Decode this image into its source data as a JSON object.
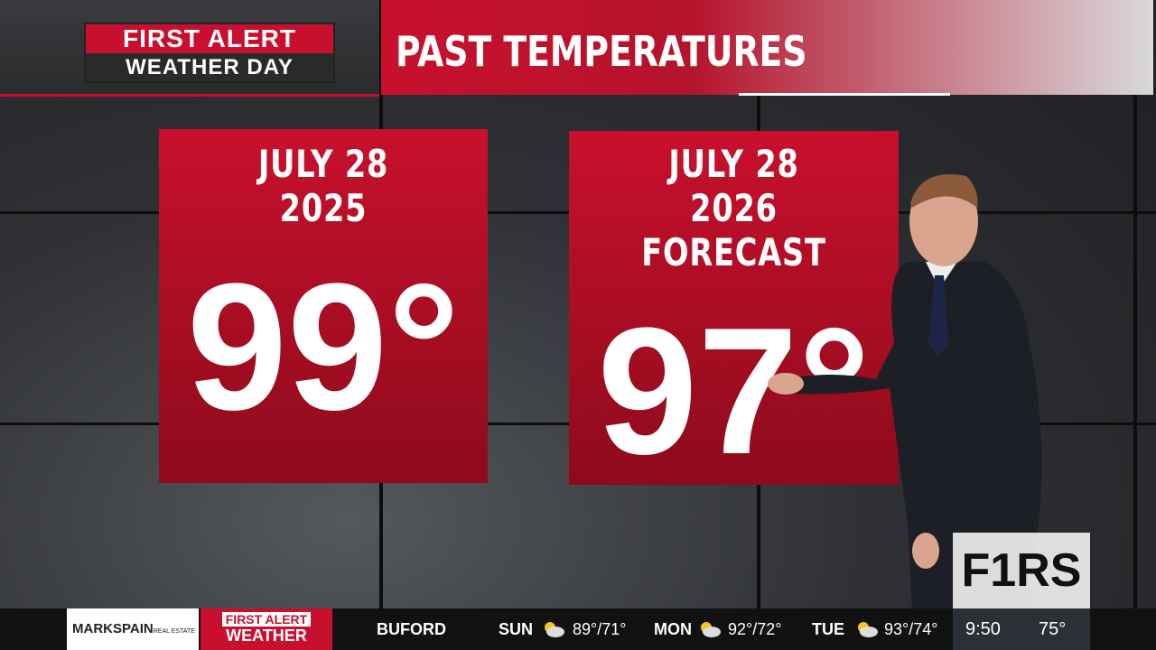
{
  "header": {
    "logo": {
      "line1": "FIRST ALERT",
      "line2": "WEATHER DAY"
    },
    "title": "PAST TEMPERATURES"
  },
  "cards": [
    {
      "date": "JULY 28",
      "year": "2025",
      "temperature": "99°"
    },
    {
      "date": "JULY 28",
      "year": "2026 FORECAST",
      "temperature": "97°"
    }
  ],
  "corner_logo": "F1RS",
  "ticker": {
    "sponsor": {
      "name": "MARKSPAIN",
      "tag": "REAL ESTATE"
    },
    "brand": {
      "line1": "FIRST ALERT",
      "line2": "WEATHER"
    },
    "location": "BUFORD",
    "forecast": [
      {
        "day": "SUN",
        "temps": "89°/71°"
      },
      {
        "day": "MON",
        "temps": "92°/72°"
      },
      {
        "day": "TUE",
        "temps": "93°/74°"
      }
    ],
    "time": "9:50",
    "current": "75°"
  }
}
